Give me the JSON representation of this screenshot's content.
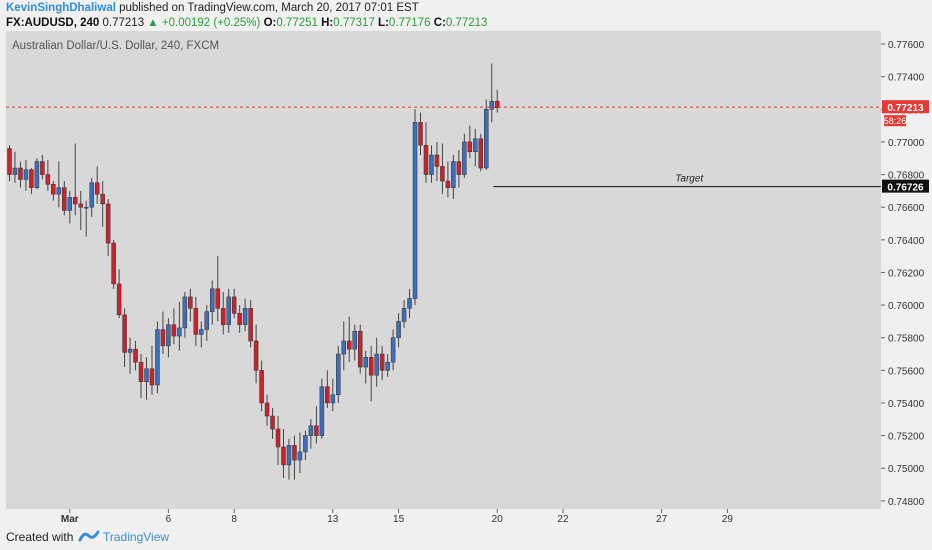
{
  "header": {
    "author": "KevinSinghDhaliwal",
    "published": "published on TradingView.com, March 20, 2017 07:01 EST",
    "symbol": "FX:AUDUSD, 240",
    "last": "0.77213",
    "change": "+0.00192 (+0.25%)",
    "o_label": "O:",
    "o_value": "0.77251",
    "h_label": "H:",
    "h_value": "0.77317",
    "l_label": "L:",
    "l_value": "0.77176",
    "c_label": "C:",
    "c_value": "0.77213"
  },
  "plot_title": "Australian Dollar/U.S. Dollar, 240, FXCM",
  "footer": {
    "created_with": "Created with",
    "brand": "TradingView"
  },
  "chart_data": {
    "type": "candlestick",
    "title": "Australian Dollar/U.S. Dollar, 240, FXCM",
    "ylim": [
      0.7475,
      0.7768
    ],
    "y_ticks": [
      "0.77600",
      "0.77400",
      "0.77200",
      "0.77000",
      "0.76800",
      "0.76600",
      "0.76400",
      "0.76200",
      "0.76000",
      "0.75800",
      "0.75600",
      "0.75400",
      "0.75200",
      "0.75000",
      "0.74800"
    ],
    "x_ticks": [
      {
        "label": "Mar",
        "index": 11
      },
      {
        "label": "6",
        "index": 29
      },
      {
        "label": "8",
        "index": 41
      },
      {
        "label": "13",
        "index": 59
      },
      {
        "label": "15",
        "index": 71
      },
      {
        "label": "20",
        "index": 89
      },
      {
        "label": "22",
        "index": 101
      },
      {
        "label": "27",
        "index": 119
      },
      {
        "label": "29",
        "index": 131
      }
    ],
    "bar_count": 146,
    "current_price": "0.77213",
    "countdown": "58:26",
    "target_price": "0.76726",
    "target_label": "Target",
    "target_start_index": 88.3,
    "colors": {
      "up": "#3d6fb8",
      "down": "#c8242d",
      "wick": "#444444",
      "price_line": "#e53935",
      "target_bg": "#111111"
    },
    "candles": [
      [
        0.7696,
        0.7698,
        0.7676,
        0.768
      ],
      [
        0.768,
        0.7694,
        0.7675,
        0.7684
      ],
      [
        0.7684,
        0.7688,
        0.7672,
        0.7677
      ],
      [
        0.7677,
        0.7689,
        0.767,
        0.7683
      ],
      [
        0.7683,
        0.7684,
        0.7668,
        0.7672
      ],
      [
        0.7672,
        0.769,
        0.7671,
        0.7688
      ],
      [
        0.7688,
        0.7692,
        0.7677,
        0.768
      ],
      [
        0.768,
        0.7689,
        0.767,
        0.7674
      ],
      [
        0.7674,
        0.7676,
        0.7664,
        0.7668
      ],
      [
        0.7668,
        0.7688,
        0.766,
        0.7672
      ],
      [
        0.7672,
        0.7676,
        0.7655,
        0.7658
      ],
      [
        0.7658,
        0.767,
        0.765,
        0.7666
      ],
      [
        0.7666,
        0.7699,
        0.7655,
        0.7662
      ],
      [
        0.7662,
        0.767,
        0.7646,
        0.766
      ],
      [
        0.766,
        0.7664,
        0.7642,
        0.766
      ],
      [
        0.766,
        0.7678,
        0.7654,
        0.7675
      ],
      [
        0.7675,
        0.7685,
        0.7662,
        0.7668
      ],
      [
        0.7668,
        0.7676,
        0.7648,
        0.7662
      ],
      [
        0.7662,
        0.7665,
        0.763,
        0.7638
      ],
      [
        0.7638,
        0.764,
        0.761,
        0.7613
      ],
      [
        0.7613,
        0.7622,
        0.7592,
        0.7594
      ],
      [
        0.7594,
        0.7598,
        0.7562,
        0.7571
      ],
      [
        0.7571,
        0.758,
        0.7558,
        0.7573
      ],
      [
        0.7573,
        0.7578,
        0.756,
        0.7565
      ],
      [
        0.7565,
        0.757,
        0.7543,
        0.7553
      ],
      [
        0.7553,
        0.7568,
        0.7542,
        0.7561
      ],
      [
        0.7561,
        0.7575,
        0.7545,
        0.7551
      ],
      [
        0.7551,
        0.759,
        0.7546,
        0.7585
      ],
      [
        0.7585,
        0.7596,
        0.757,
        0.7575
      ],
      [
        0.7575,
        0.7592,
        0.7568,
        0.7588
      ],
      [
        0.7588,
        0.7598,
        0.7576,
        0.7581
      ],
      [
        0.7581,
        0.7602,
        0.7572,
        0.7586
      ],
      [
        0.7586,
        0.7608,
        0.758,
        0.7605
      ],
      [
        0.7605,
        0.761,
        0.759,
        0.7598
      ],
      [
        0.7598,
        0.7605,
        0.7575,
        0.7582
      ],
      [
        0.7582,
        0.759,
        0.7574,
        0.7585
      ],
      [
        0.7585,
        0.76,
        0.7578,
        0.7596
      ],
      [
        0.7596,
        0.7615,
        0.7588,
        0.761
      ],
      [
        0.761,
        0.763,
        0.759,
        0.7598
      ],
      [
        0.7598,
        0.7608,
        0.7582,
        0.7588
      ],
      [
        0.7588,
        0.761,
        0.7583,
        0.7605
      ],
      [
        0.7605,
        0.761,
        0.7592,
        0.7595
      ],
      [
        0.7595,
        0.76,
        0.7583,
        0.7588
      ],
      [
        0.7588,
        0.7604,
        0.7584,
        0.7598
      ],
      [
        0.7598,
        0.7603,
        0.7574,
        0.7578
      ],
      [
        0.7578,
        0.7588,
        0.7552,
        0.756
      ],
      [
        0.756,
        0.7566,
        0.7535,
        0.754
      ],
      [
        0.754,
        0.7545,
        0.7526,
        0.7532
      ],
      [
        0.7532,
        0.7537,
        0.7518,
        0.7524
      ],
      [
        0.7524,
        0.7532,
        0.7502,
        0.7513
      ],
      [
        0.7513,
        0.7524,
        0.7494,
        0.7502
      ],
      [
        0.7502,
        0.7518,
        0.7493,
        0.7514
      ],
      [
        0.7514,
        0.752,
        0.7493,
        0.7505
      ],
      [
        0.7505,
        0.7522,
        0.7497,
        0.751
      ],
      [
        0.751,
        0.7523,
        0.7505,
        0.752
      ],
      [
        0.752,
        0.753,
        0.7512,
        0.7526
      ],
      [
        0.7526,
        0.7538,
        0.7515,
        0.752
      ],
      [
        0.752,
        0.7555,
        0.7518,
        0.755
      ],
      [
        0.755,
        0.756,
        0.7537,
        0.754
      ],
      [
        0.754,
        0.7555,
        0.7535,
        0.7545
      ],
      [
        0.7545,
        0.7575,
        0.754,
        0.757
      ],
      [
        0.757,
        0.759,
        0.756,
        0.7578
      ],
      [
        0.7578,
        0.7593,
        0.7565,
        0.7573
      ],
      [
        0.7573,
        0.7588,
        0.7566,
        0.7584
      ],
      [
        0.7584,
        0.7588,
        0.7558,
        0.7562
      ],
      [
        0.7562,
        0.7572,
        0.7552,
        0.7568
      ],
      [
        0.7568,
        0.7575,
        0.7541,
        0.7557
      ],
      [
        0.7557,
        0.758,
        0.755,
        0.757
      ],
      [
        0.757,
        0.7575,
        0.7554,
        0.756
      ],
      [
        0.756,
        0.757,
        0.7556,
        0.7565
      ],
      [
        0.7565,
        0.7585,
        0.756,
        0.758
      ],
      [
        0.758,
        0.7595,
        0.7574,
        0.759
      ],
      [
        0.759,
        0.7603,
        0.7586,
        0.7598
      ],
      [
        0.7598,
        0.761,
        0.7592,
        0.7604
      ],
      [
        0.7604,
        0.772,
        0.76,
        0.7712
      ],
      [
        0.7712,
        0.7718,
        0.7692,
        0.7698
      ],
      [
        0.7698,
        0.7712,
        0.7675,
        0.768
      ],
      [
        0.768,
        0.7698,
        0.7675,
        0.7692
      ],
      [
        0.7692,
        0.77,
        0.7676,
        0.7685
      ],
      [
        0.7685,
        0.7699,
        0.7668,
        0.7676
      ],
      [
        0.7676,
        0.7688,
        0.7666,
        0.7672
      ],
      [
        0.7672,
        0.7692,
        0.7665,
        0.7688
      ],
      [
        0.7688,
        0.7695,
        0.7672,
        0.768
      ],
      [
        0.768,
        0.7705,
        0.7678,
        0.77
      ],
      [
        0.77,
        0.771,
        0.769,
        0.7694
      ],
      [
        0.7694,
        0.7708,
        0.7685,
        0.7702
      ],
      [
        0.7702,
        0.7705,
        0.7682,
        0.7684
      ],
      [
        0.7684,
        0.7726,
        0.7683,
        0.772
      ],
      [
        0.772,
        0.7748,
        0.7712,
        0.7725
      ],
      [
        0.7725,
        0.7732,
        0.7718,
        0.7721
      ]
    ]
  }
}
